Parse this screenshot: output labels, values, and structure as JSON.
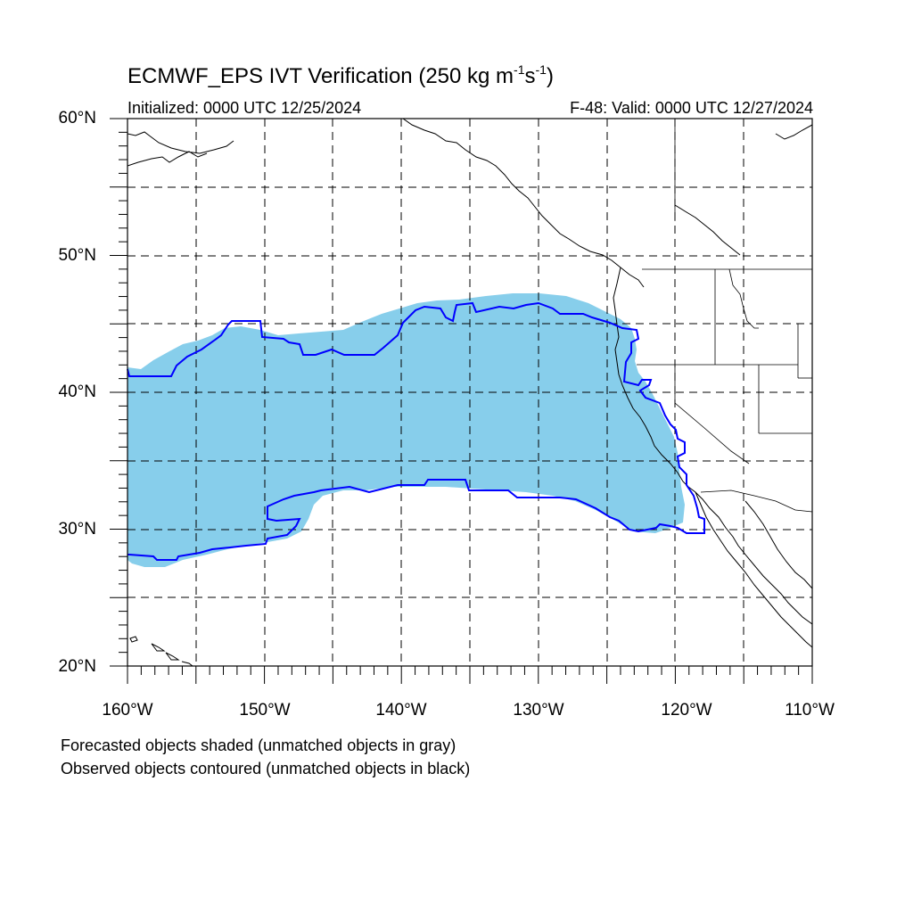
{
  "title": {
    "main": "ECMWF_EPS IVT Verification (250 kg m",
    "exp1": "-1",
    "mid": "s",
    "exp2": "-1",
    "end": ")"
  },
  "initialized": "Initialized: 0000 UTC 12/25/2024",
  "valid": "F-48: Valid: 0000 UTC 12/27/2024",
  "lat_labels": [
    "60°N",
    "50°N",
    "40°N",
    "30°N",
    "20°N"
  ],
  "lon_labels": [
    "160°W",
    "150°W",
    "140°W",
    "130°W",
    "120°W",
    "110°W"
  ],
  "notes": {
    "forecast": "Forecasted objects shaded (unmatched objects in gray)",
    "observed": "Observed objects contoured (unmatched objects in black)"
  },
  "colors": {
    "forecast_fill": "#87ceeb",
    "observed_contour": "#0000ff",
    "coastline": "#000000",
    "grid": "#000000"
  },
  "map": {
    "lon_range": [
      -160,
      -110
    ],
    "lat_range": [
      20,
      60
    ],
    "grid_step": 5,
    "label_step": 10
  }
}
